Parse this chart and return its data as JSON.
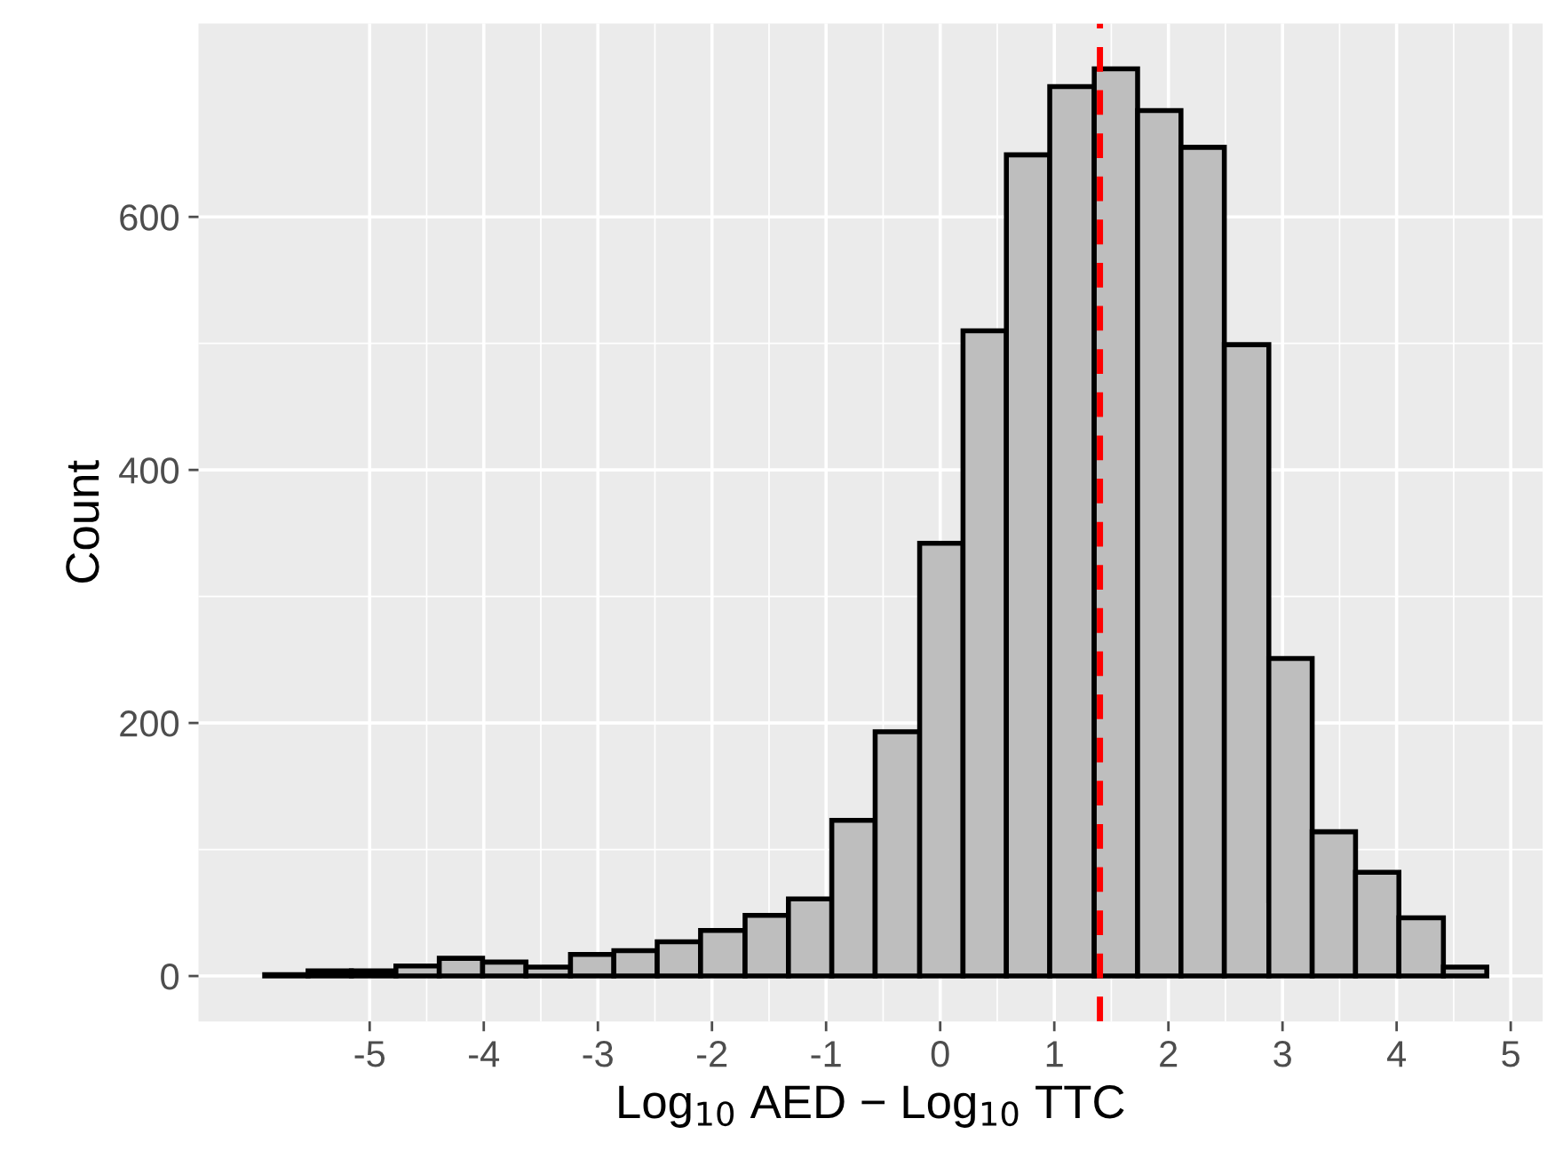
{
  "chart_data": {
    "type": "histogram",
    "xlabel": "Log$_{10}$ AED − Log$_{10}$ TTC",
    "ylabel": "Count",
    "bins": [
      -5.92,
      -5.54,
      -5.16,
      -4.77,
      -4.39,
      -4.01,
      -3.63,
      -3.24,
      -2.86,
      -2.48,
      -2.1,
      -1.71,
      -1.33,
      -0.95,
      -0.57,
      -0.18,
      0.2,
      0.58,
      0.96,
      1.35,
      1.73,
      2.11,
      2.49,
      2.88,
      3.26,
      3.64,
      4.02,
      4.41,
      4.79
    ],
    "values": [
      1,
      4,
      4,
      8,
      14,
      11,
      7,
      17,
      20,
      27,
      36,
      48,
      61,
      123,
      193,
      342,
      510,
      649,
      703,
      717,
      684,
      655,
      499,
      251,
      114,
      82,
      46,
      7
    ],
    "color": "#bebebe",
    "xlim": [
      -6.5,
      5.28
    ],
    "ylim": [
      -35.85,
      752.85
    ],
    "xticks": [
      -5,
      -4,
      -3,
      -2,
      -1,
      0,
      1,
      2,
      3,
      4,
      5
    ],
    "yticks": [
      0,
      200,
      400,
      600
    ],
    "grid": true,
    "ref_lines": [
      {
        "axis": "x",
        "value": 1.4,
        "color": "#ff0000",
        "line_style": "dashed"
      }
    ]
  }
}
